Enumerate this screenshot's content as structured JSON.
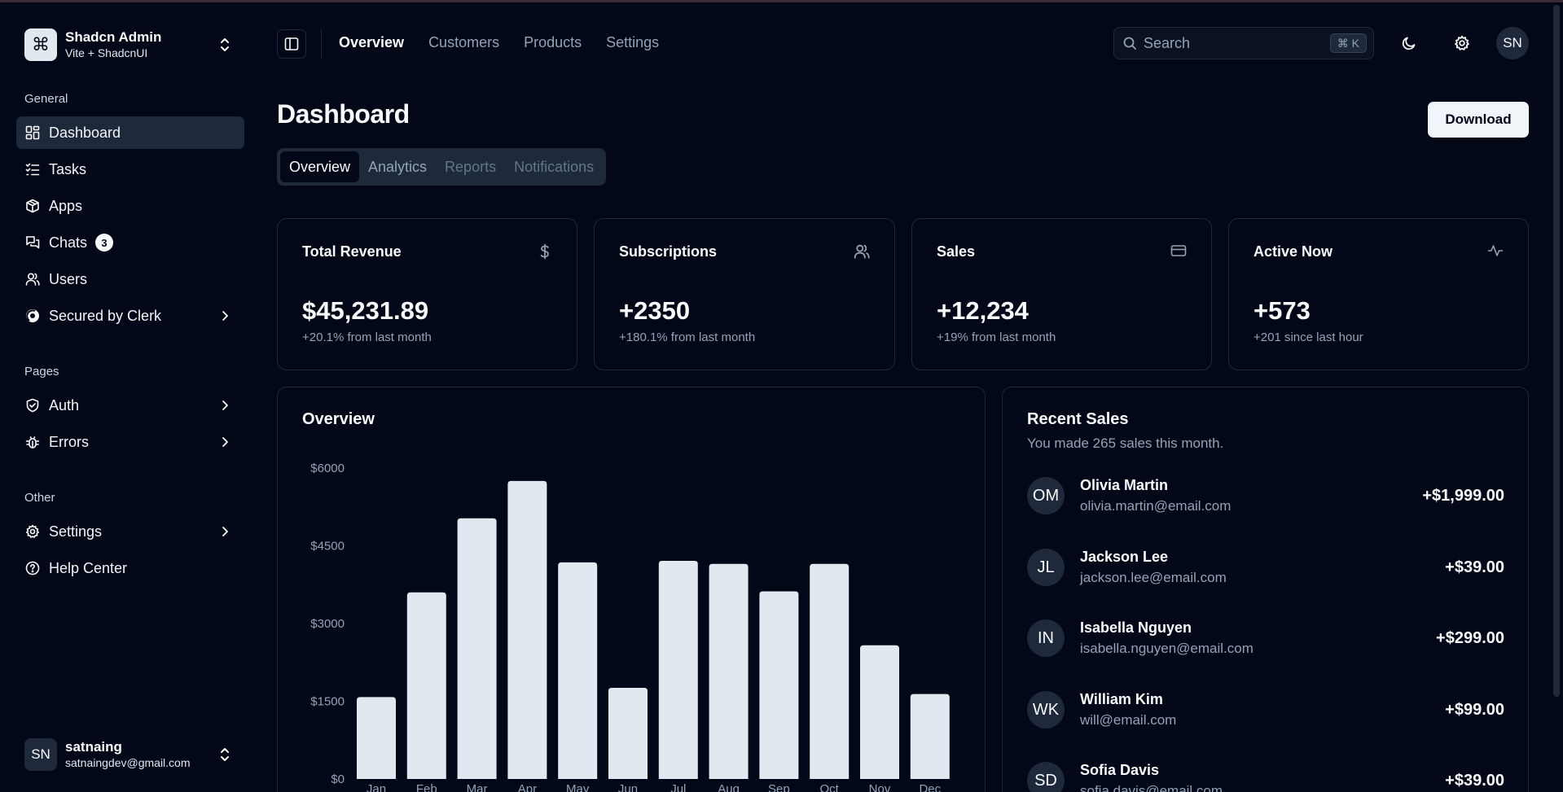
{
  "team": {
    "name": "Shadcn Admin",
    "subtitle": "Vite + ShadcnUI",
    "logo_glyph": "⌘"
  },
  "sidebar": {
    "groups": [
      {
        "label": "General",
        "items": [
          {
            "label": "Dashboard",
            "icon": "layout-dashboard-icon",
            "active": true
          },
          {
            "label": "Tasks",
            "icon": "list-checks-icon"
          },
          {
            "label": "Apps",
            "icon": "package-icon"
          },
          {
            "label": "Chats",
            "icon": "messages-icon",
            "badge": "3"
          },
          {
            "label": "Users",
            "icon": "users-icon"
          },
          {
            "label": "Secured by Clerk",
            "icon": "clerk-icon",
            "expandable": true
          }
        ]
      },
      {
        "label": "Pages",
        "items": [
          {
            "label": "Auth",
            "icon": "shield-check-icon",
            "expandable": true
          },
          {
            "label": "Errors",
            "icon": "bug-icon",
            "expandable": true
          }
        ]
      },
      {
        "label": "Other",
        "items": [
          {
            "label": "Settings",
            "icon": "settings-icon",
            "expandable": true
          },
          {
            "label": "Help Center",
            "icon": "help-circle-icon"
          }
        ]
      }
    ]
  },
  "user": {
    "initials": "SN",
    "name": "satnaing",
    "email": "satnaingdev@gmail.com"
  },
  "header": {
    "nav": [
      {
        "label": "Overview",
        "active": true
      },
      {
        "label": "Customers"
      },
      {
        "label": "Products"
      },
      {
        "label": "Settings"
      }
    ],
    "search_placeholder": "Search",
    "shortcut": "⌘ K",
    "avatar_initials": "SN"
  },
  "page": {
    "title": "Dashboard",
    "download_label": "Download",
    "tabs": [
      "Overview",
      "Analytics",
      "Reports",
      "Notifications"
    ]
  },
  "stats": [
    {
      "title": "Total Revenue",
      "value": "$45,231.89",
      "sub": "+20.1% from last month",
      "icon": "dollar-icon"
    },
    {
      "title": "Subscriptions",
      "value": "+2350",
      "sub": "+180.1% from last month",
      "icon": "users-icon"
    },
    {
      "title": "Sales",
      "value": "+12,234",
      "sub": "+19% from last month",
      "icon": "credit-card-icon"
    },
    {
      "title": "Active Now",
      "value": "+573",
      "sub": "+201 since last hour",
      "icon": "activity-icon"
    }
  ],
  "overview": {
    "title": "Overview"
  },
  "recent_sales": {
    "title": "Recent Sales",
    "subtitle": "You made 265 sales this month.",
    "items": [
      {
        "initials": "OM",
        "name": "Olivia Martin",
        "email": "olivia.martin@email.com",
        "amount": "+$1,999.00"
      },
      {
        "initials": "JL",
        "name": "Jackson Lee",
        "email": "jackson.lee@email.com",
        "amount": "+$39.00"
      },
      {
        "initials": "IN",
        "name": "Isabella Nguyen",
        "email": "isabella.nguyen@email.com",
        "amount": "+$299.00"
      },
      {
        "initials": "WK",
        "name": "William Kim",
        "email": "will@email.com",
        "amount": "+$99.00"
      },
      {
        "initials": "SD",
        "name": "Sofia Davis",
        "email": "sofia.davis@email.com",
        "amount": "+$39.00"
      }
    ]
  },
  "chart_data": {
    "type": "bar",
    "categories": [
      "Jan",
      "Feb",
      "Mar",
      "Apr",
      "May",
      "Jun",
      "Jul",
      "Aug",
      "Sep",
      "Oct",
      "Nov",
      "Dec"
    ],
    "values": [
      1580,
      3600,
      5030,
      5750,
      4180,
      1760,
      4210,
      4150,
      3620,
      4150,
      2580,
      1640
    ],
    "ytick_labels": [
      "$0",
      "$1500",
      "$3000",
      "$4500",
      "$6000"
    ],
    "ylim": [
      0,
      6000
    ],
    "bar_color": "#e2e8f0",
    "grid": false
  },
  "colors": {
    "background": "#020817",
    "muted": "#1e293b",
    "foreground": "#f8fafc",
    "muted_text": "#94a3b8"
  }
}
